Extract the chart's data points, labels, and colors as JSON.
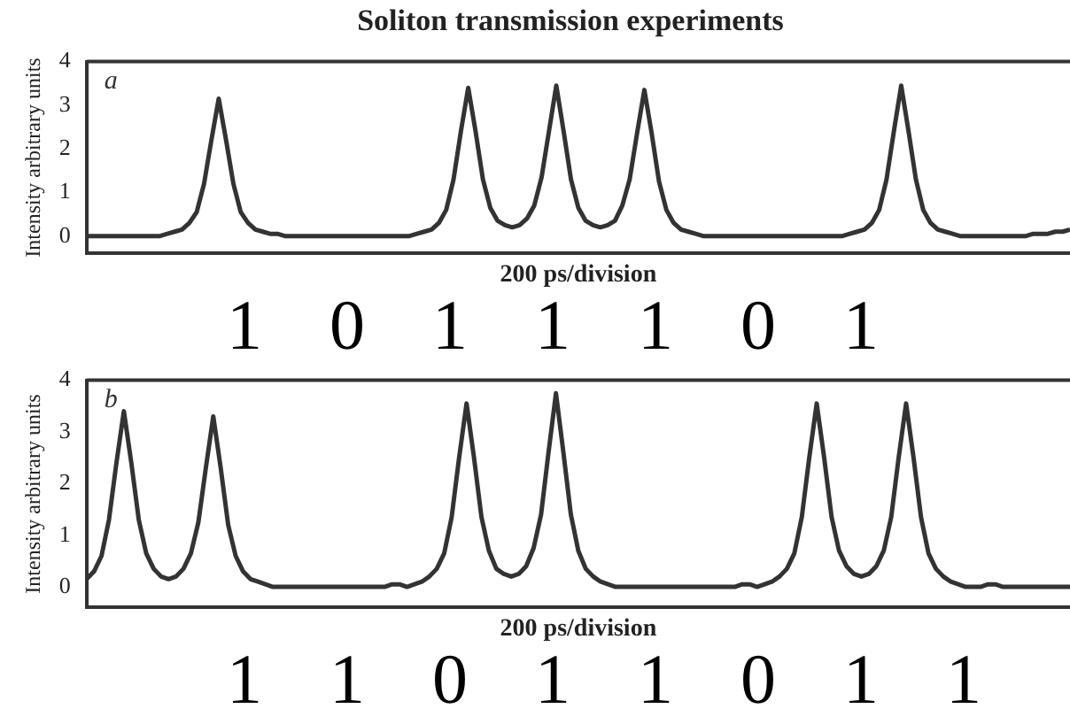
{
  "chart_data": [
    {
      "type": "line",
      "title": "Soliton transmission experiments",
      "xlabel": "200 ps/division",
      "ylabel": "Intensity arbitrary units",
      "annotations": [
        "a",
        "1 0 1 1 1 0 1"
      ],
      "color": "#333333",
      "marker": "none",
      "tick_labels": "y",
      "ylim": [
        -0.4,
        4
      ],
      "yticks": [
        0,
        1,
        2,
        3,
        4
      ],
      "categories": [
        null,
        null,
        null,
        null,
        null,
        null,
        null,
        null,
        null,
        null,
        null,
        null,
        null,
        null,
        null,
        null,
        null,
        null,
        null,
        null,
        null,
        null,
        null,
        null,
        null,
        null,
        null,
        null,
        null,
        null,
        null,
        null,
        null,
        null,
        null,
        null,
        null,
        null,
        null,
        null,
        null,
        null,
        null,
        null,
        null,
        null,
        null,
        null,
        null,
        null,
        null,
        null,
        null,
        null,
        null,
        null,
        null,
        null,
        null,
        null,
        null,
        null,
        null,
        null,
        null,
        null,
        null,
        null,
        null,
        null,
        null,
        null,
        null,
        null,
        null,
        null,
        null,
        null,
        null,
        null,
        null,
        null,
        null,
        null,
        null,
        null,
        null,
        null,
        null,
        null,
        null,
        null,
        null,
        null,
        null,
        null,
        null,
        null,
        null,
        null,
        null,
        null,
        null,
        null,
        null,
        null,
        null,
        null,
        null,
        null,
        null,
        null,
        null,
        null,
        null,
        null,
        null,
        null,
        null,
        null,
        null,
        null,
        null,
        null,
        null,
        null,
        null,
        null,
        null,
        null,
        null,
        null,
        null,
        null,
        null
      ],
      "values": [
        0,
        0,
        0,
        0,
        0,
        0,
        0,
        0,
        0,
        0,
        0,
        0.05,
        0.1,
        0.15,
        0.3,
        0.55,
        1.2,
        2.2,
        3.15,
        2.2,
        1.2,
        0.55,
        0.3,
        0.15,
        0.1,
        0.05,
        0.05,
        0,
        0,
        0,
        0,
        0,
        0,
        0,
        0,
        0,
        0,
        0,
        0,
        0,
        0,
        0,
        0,
        0,
        0,
        0.05,
        0.1,
        0.15,
        0.3,
        0.6,
        1.3,
        2.4,
        3.4,
        2.4,
        1.3,
        0.65,
        0.35,
        0.25,
        0.2,
        0.25,
        0.4,
        0.7,
        1.35,
        2.4,
        3.45,
        2.4,
        1.3,
        0.65,
        0.35,
        0.25,
        0.2,
        0.25,
        0.35,
        0.7,
        1.3,
        2.35,
        3.35,
        2.35,
        1.25,
        0.6,
        0.3,
        0.15,
        0.1,
        0.05,
        0,
        0,
        0,
        0,
        0,
        0,
        0,
        0,
        0,
        0,
        0,
        0,
        0,
        0,
        0,
        0,
        0,
        0,
        0,
        0,
        0.05,
        0.1,
        0.15,
        0.3,
        0.6,
        1.3,
        2.4,
        3.45,
        2.4,
        1.3,
        0.6,
        0.3,
        0.15,
        0.1,
        0.05,
        0,
        0,
        0,
        0,
        0,
        0,
        0,
        0,
        0,
        0,
        0.05,
        0.05,
        0.05,
        0.1,
        0.1,
        0.15
      ]
    },
    {
      "type": "line",
      "xlabel": "200 ps/division",
      "ylabel": "Intensity arbitrary units",
      "annotations": [
        "b",
        "1 1 0 1 1 0 1 1"
      ],
      "color": "#333333",
      "marker": "none",
      "tick_labels": "y",
      "ylim": [
        -0.4,
        4
      ],
      "yticks": [
        0,
        1,
        2,
        3,
        4
      ],
      "categories": [
        null,
        null,
        null,
        null,
        null,
        null,
        null,
        null,
        null,
        null,
        null,
        null,
        null,
        null,
        null,
        null,
        null,
        null,
        null,
        null,
        null,
        null,
        null,
        null,
        null,
        null,
        null,
        null,
        null,
        null,
        null,
        null,
        null,
        null,
        null,
        null,
        null,
        null,
        null,
        null,
        null,
        null,
        null,
        null,
        null,
        null,
        null,
        null,
        null,
        null,
        null,
        null,
        null,
        null,
        null,
        null,
        null,
        null,
        null,
        null,
        null,
        null,
        null,
        null,
        null,
        null,
        null,
        null,
        null,
        null,
        null,
        null,
        null,
        null,
        null,
        null,
        null,
        null,
        null,
        null,
        null,
        null,
        null,
        null,
        null,
        null,
        null,
        null,
        null,
        null,
        null,
        null,
        null,
        null,
        null,
        null,
        null,
        null,
        null,
        null,
        null,
        null,
        null,
        null,
        null,
        null,
        null,
        null,
        null,
        null,
        null,
        null,
        null,
        null,
        null,
        null,
        null,
        null,
        null,
        null,
        null,
        null,
        null,
        null,
        null,
        null,
        null,
        null,
        null,
        null,
        null,
        null,
        null
      ],
      "values": [
        0.15,
        0.3,
        0.6,
        1.3,
        2.4,
        3.4,
        2.4,
        1.3,
        0.65,
        0.35,
        0.2,
        0.15,
        0.2,
        0.35,
        0.65,
        1.25,
        2.3,
        3.3,
        2.3,
        1.2,
        0.6,
        0.3,
        0.15,
        0.1,
        0.05,
        0,
        0,
        0,
        0,
        0,
        0,
        0,
        0,
        0,
        0,
        0,
        0,
        0,
        0,
        0,
        0,
        0.05,
        0.05,
        0,
        0.05,
        0.1,
        0.2,
        0.35,
        0.65,
        1.35,
        2.5,
        3.55,
        2.5,
        1.35,
        0.7,
        0.35,
        0.25,
        0.2,
        0.25,
        0.4,
        0.75,
        1.4,
        2.6,
        3.75,
        2.6,
        1.4,
        0.7,
        0.35,
        0.2,
        0.1,
        0.05,
        0,
        0,
        0,
        0,
        0,
        0,
        0,
        0,
        0,
        0,
        0,
        0,
        0,
        0,
        0,
        0,
        0,
        0.05,
        0.05,
        0,
        0.05,
        0.1,
        0.2,
        0.35,
        0.65,
        1.35,
        2.5,
        3.55,
        2.5,
        1.35,
        0.7,
        0.4,
        0.25,
        0.2,
        0.25,
        0.4,
        0.7,
        1.35,
        2.5,
        3.55,
        2.5,
        1.35,
        0.65,
        0.35,
        0.2,
        0.1,
        0.05,
        0,
        0,
        0,
        0.05,
        0.05,
        0,
        0,
        0,
        0,
        0,
        0,
        0,
        0,
        0,
        0
      ]
    }
  ]
}
